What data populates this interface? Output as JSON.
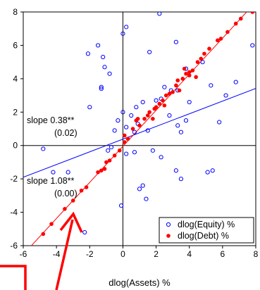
{
  "chart_data": {
    "type": "scatter",
    "title": "",
    "xlabel": "dlog(Assets) %",
    "ylabel": "",
    "xlim": [
      -6,
      8
    ],
    "ylim": [
      -6,
      8
    ],
    "x_ticks": [
      "-6",
      "-4",
      "-2",
      "0",
      "2",
      "4",
      "6",
      "8"
    ],
    "y_ticks": [
      "-6",
      "-4",
      "-2",
      "0",
      "2",
      "4",
      "6",
      "8"
    ],
    "grid": false,
    "legend_position": "bottom-right",
    "annotations": [
      {
        "slope_text": "slope 0.38**",
        "se_text": "(0.02)",
        "line": "equity"
      },
      {
        "slope_text": "slope 1.08**",
        "se_text": "(0.00)",
        "line": "debt"
      }
    ],
    "series": [
      {
        "name": "dlog(Equity) %",
        "color": "#0000ff",
        "marker": "open-circle",
        "fit": {
          "slope": 0.38,
          "intercept": 0.38
        },
        "points": [
          [
            0.2,
            7.1
          ],
          [
            0.0,
            6.7
          ],
          [
            -1.5,
            6.0
          ],
          [
            -1.2,
            5.3
          ],
          [
            -2.1,
            5.5
          ],
          [
            -1.1,
            4.7
          ],
          [
            -1.3,
            3.4
          ],
          [
            -0.8,
            4.3
          ],
          [
            -1.3,
            3.5
          ],
          [
            -2.0,
            2.3
          ],
          [
            1.6,
            5.6
          ],
          [
            3.2,
            6.2
          ],
          [
            2.2,
            7.9
          ],
          [
            7.8,
            6.0
          ],
          [
            4.8,
            5.0
          ],
          [
            3.8,
            4.6
          ],
          [
            3.3,
            3.3
          ],
          [
            2.9,
            3.3
          ],
          [
            2.5,
            3.5
          ],
          [
            2.3,
            2.8
          ],
          [
            2.0,
            2.7
          ],
          [
            1.2,
            2.6
          ],
          [
            0.8,
            2.3
          ],
          [
            0.0,
            2.0
          ],
          [
            -0.3,
            1.5
          ],
          [
            -0.5,
            0.9
          ],
          [
            0.7,
            0.8
          ],
          [
            0.9,
            1.3
          ],
          [
            1.5,
            0.9
          ],
          [
            3.3,
            1.2
          ],
          [
            3.5,
            0.8
          ],
          [
            5.8,
            1.4
          ],
          [
            6.2,
            3.0
          ],
          [
            6.8,
            3.8
          ],
          [
            5.3,
            3.6
          ],
          [
            4.0,
            2.6
          ],
          [
            2.8,
            1.8
          ],
          [
            3.8,
            1.5
          ],
          [
            -4.8,
            -0.2
          ],
          [
            -4.2,
            -1.6
          ],
          [
            -3.3,
            -1.6
          ],
          [
            -0.7,
            -0.1
          ],
          [
            -0.9,
            -0.3
          ],
          [
            0.2,
            -0.5
          ],
          [
            0.7,
            -0.4
          ],
          [
            1.8,
            -0.3
          ],
          [
            2.3,
            -0.7
          ],
          [
            3.2,
            -1.5
          ],
          [
            3.5,
            -2.0
          ],
          [
            5.1,
            -1.6
          ],
          [
            5.4,
            -1.5
          ],
          [
            1.2,
            -2.4
          ],
          [
            1.0,
            -2.6
          ],
          [
            -0.1,
            -3.6
          ],
          [
            1.4,
            -3.2
          ],
          [
            -2.3,
            -5.2
          ],
          [
            0.2,
            1.1
          ],
          [
            0.5,
            1.8
          ]
        ]
      },
      {
        "name": "dlog(Debt) %",
        "color": "#ff0000",
        "marker": "filled-circle",
        "fit": {
          "slope": 1.08,
          "intercept": -0.05
        },
        "points": [
          [
            -4.8,
            -5.3
          ],
          [
            -4.3,
            -4.7
          ],
          [
            -3.5,
            -3.8
          ],
          [
            -3.0,
            -3.3
          ],
          [
            -2.5,
            -2.7
          ],
          [
            -2.2,
            -2.5
          ],
          [
            -1.5,
            -1.6
          ],
          [
            -1.3,
            -1.5
          ],
          [
            -1.1,
            -1.4
          ],
          [
            -1.0,
            -1.0
          ],
          [
            -0.8,
            -0.9
          ],
          [
            -0.5,
            -0.6
          ],
          [
            -0.2,
            -0.3
          ],
          [
            0.1,
            0.2
          ],
          [
            0.1,
            0.6
          ],
          [
            0.3,
            0.4
          ],
          [
            0.6,
            1.0
          ],
          [
            0.8,
            1.5
          ],
          [
            1.0,
            1.2
          ],
          [
            1.3,
            1.6
          ],
          [
            1.5,
            1.8
          ],
          [
            1.6,
            2.0
          ],
          [
            1.8,
            1.6
          ],
          [
            2.0,
            2.3
          ],
          [
            2.2,
            2.5
          ],
          [
            2.4,
            2.7
          ],
          [
            2.6,
            3.0
          ],
          [
            2.8,
            3.1
          ],
          [
            3.0,
            3.2
          ],
          [
            3.2,
            3.6
          ],
          [
            3.3,
            3.9
          ],
          [
            3.4,
            3.3
          ],
          [
            3.6,
            4.0
          ],
          [
            3.8,
            4.3
          ],
          [
            4.0,
            4.2
          ],
          [
            4.2,
            4.5
          ],
          [
            4.4,
            4.1
          ],
          [
            4.5,
            5.0
          ],
          [
            4.7,
            5.2
          ],
          [
            4.9,
            5.5
          ],
          [
            5.2,
            5.8
          ],
          [
            5.7,
            6.3
          ],
          [
            5.9,
            6.4
          ],
          [
            6.3,
            6.8
          ],
          [
            6.8,
            7.3
          ],
          [
            7.1,
            7.6
          ],
          [
            7.8,
            8.0
          ],
          [
            4.0,
            4.4
          ],
          [
            2.5,
            2.4
          ],
          [
            3.7,
            4.6
          ],
          [
            0.9,
            1.6
          ],
          [
            1.9,
            2.2
          ]
        ]
      }
    ]
  }
}
